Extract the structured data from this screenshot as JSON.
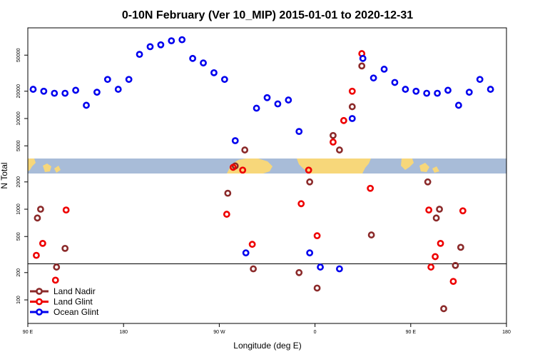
{
  "chart_data": {
    "type": "scatter",
    "title": "0-10N February (Ver 10_MIP)   2015-01-01 to 2020-12-31",
    "xlabel": "Longitude (deg E)",
    "ylabel": "N Total",
    "x_ticks": [
      {
        "value": 90,
        "label": "90 E"
      },
      {
        "value": 180,
        "label": "180"
      },
      {
        "value": 270,
        "label": "90 W"
      },
      {
        "value": 360,
        "label": "0"
      },
      {
        "value": 450,
        "label": "90 E"
      },
      {
        "value": 540,
        "label": "180"
      }
    ],
    "xlim": [
      90,
      540
    ],
    "ylog": true,
    "ylim": [
      55,
      100000
    ],
    "y_ticks": [
      {
        "value": 100,
        "label": "100"
      },
      {
        "value": 200,
        "label": "200"
      },
      {
        "value": 500,
        "label": "500"
      },
      {
        "value": 1000,
        "label": "1000"
      },
      {
        "value": 2000,
        "label": "2000"
      },
      {
        "value": 5000,
        "label": "5000"
      },
      {
        "value": 10000,
        "label": "10000"
      },
      {
        "value": 20000,
        "label": "20000"
      },
      {
        "value": 50000,
        "label": "50000"
      }
    ],
    "reference_line": 250,
    "map_band": {
      "lat_range": "0-10N",
      "ocean_color": "#a8bcd8",
      "land_color": "#f7d77a"
    },
    "legend_position": "bottom-left",
    "series": [
      {
        "name": "Land Nadir",
        "color": "#8b2a2a",
        "points": [
          [
            99,
            800
          ],
          [
            102,
            1000
          ],
          [
            117,
            230
          ],
          [
            125,
            370
          ],
          [
            278,
            1500
          ],
          [
            285,
            3000
          ],
          [
            294,
            4500
          ],
          [
            302,
            220
          ],
          [
            345,
            200
          ],
          [
            355,
            2000
          ],
          [
            362,
            135
          ],
          [
            377,
            6500
          ],
          [
            383,
            4500
          ],
          [
            395,
            13500
          ],
          [
            404,
            38000
          ],
          [
            413,
            520
          ],
          [
            466,
            2000
          ],
          [
            474,
            800
          ],
          [
            477,
            1000
          ],
          [
            481,
            80
          ],
          [
            492,
            240
          ],
          [
            497,
            380
          ]
        ]
      },
      {
        "name": "Land Glint",
        "color": "#ee0000",
        "points": [
          [
            98,
            310
          ],
          [
            104,
            420
          ],
          [
            116,
            165
          ],
          [
            126,
            980
          ],
          [
            277,
            880
          ],
          [
            283,
            2900
          ],
          [
            292,
            2700
          ],
          [
            301,
            410
          ],
          [
            347,
            1150
          ],
          [
            354,
            2700
          ],
          [
            362,
            510
          ],
          [
            377,
            5500
          ],
          [
            387,
            9500
          ],
          [
            395,
            20000
          ],
          [
            404,
            52000
          ],
          [
            412,
            1700
          ],
          [
            467,
            980
          ],
          [
            469,
            230
          ],
          [
            473,
            300
          ],
          [
            478,
            420
          ],
          [
            490,
            160
          ],
          [
            499,
            960
          ]
        ]
      },
      {
        "name": "Ocean Glint",
        "color": "#0000ee",
        "points": [
          [
            95,
            21000
          ],
          [
            105,
            20000
          ],
          [
            115,
            19000
          ],
          [
            125,
            19000
          ],
          [
            135,
            20500
          ],
          [
            145,
            14000
          ],
          [
            155,
            19500
          ],
          [
            165,
            27000
          ],
          [
            175,
            21000
          ],
          [
            185,
            27000
          ],
          [
            195,
            51000
          ],
          [
            205,
            62000
          ],
          [
            215,
            65000
          ],
          [
            225,
            72000
          ],
          [
            235,
            74000
          ],
          [
            245,
            46000
          ],
          [
            255,
            41000
          ],
          [
            265,
            32000
          ],
          [
            275,
            27000
          ],
          [
            285,
            5700
          ],
          [
            295,
            330
          ],
          [
            305,
            13000
          ],
          [
            315,
            17000
          ],
          [
            325,
            14500
          ],
          [
            335,
            16000
          ],
          [
            345,
            7200
          ],
          [
            355,
            330
          ],
          [
            365,
            230
          ],
          [
            383,
            220
          ],
          [
            395,
            10000
          ],
          [
            405,
            46000
          ],
          [
            415,
            28000
          ],
          [
            425,
            35000
          ],
          [
            435,
            25000
          ],
          [
            445,
            21000
          ],
          [
            455,
            20000
          ],
          [
            465,
            19000
          ],
          [
            475,
            19000
          ],
          [
            485,
            20500
          ],
          [
            495,
            14000
          ],
          [
            505,
            19500
          ],
          [
            515,
            27000
          ],
          [
            525,
            21000
          ]
        ]
      }
    ]
  }
}
